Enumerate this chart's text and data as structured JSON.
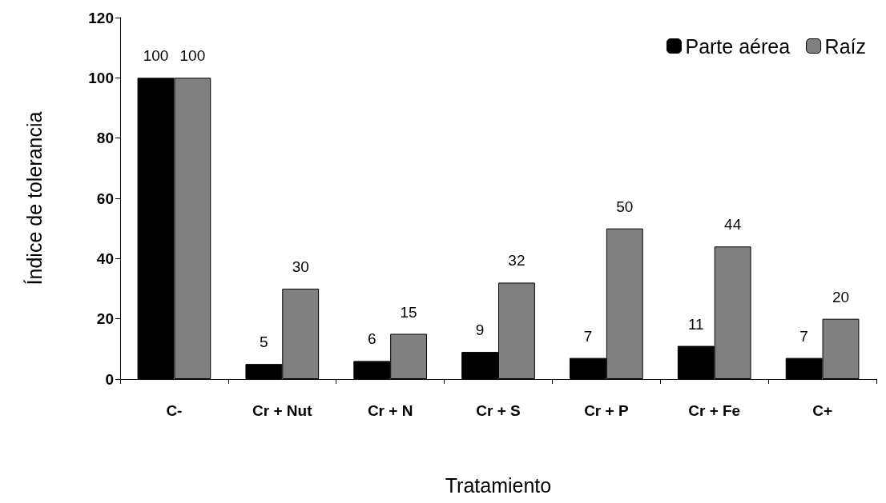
{
  "chart_data": {
    "type": "bar",
    "xlabel": "Tratamiento",
    "ylabel": "Índice de tolerancia",
    "categories": [
      "C-",
      "Cr + Nut",
      "Cr + N",
      "Cr + S",
      "Cr + P",
      "Cr + Fe",
      "C+"
    ],
    "series": [
      {
        "name": "Parte aérea",
        "color": "#000000",
        "values": [
          100,
          5,
          6,
          9,
          7,
          11,
          7
        ]
      },
      {
        "name": "Raíz",
        "color": "#808080",
        "values": [
          100,
          30,
          15,
          32,
          50,
          44,
          20
        ]
      }
    ],
    "ylim": [
      0,
      120
    ],
    "yticks": [
      0,
      20,
      40,
      60,
      80,
      100,
      120
    ],
    "grid": false,
    "legend": "top right",
    "data_labels": true
  }
}
